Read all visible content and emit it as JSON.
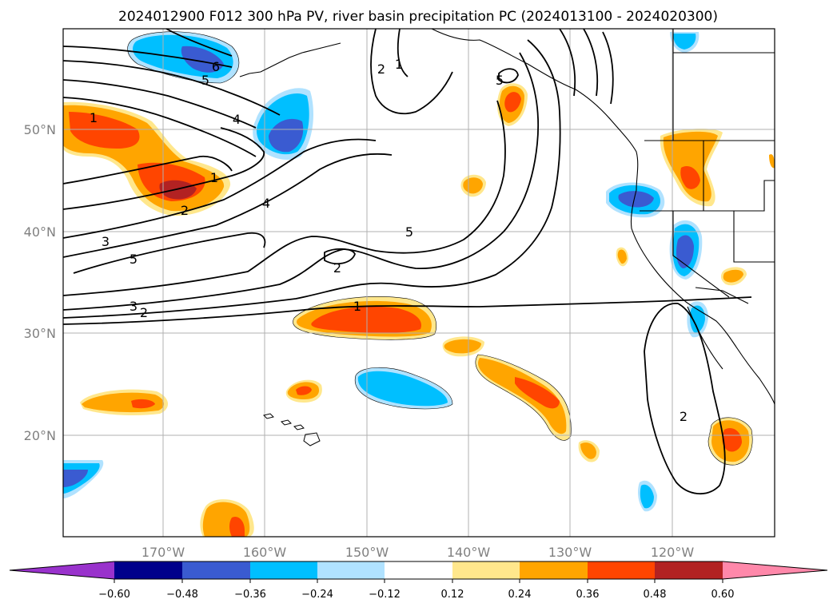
{
  "title": "2024012900 F012 300 hPa PV, river basin precipitation PC (2024013100 - 2024020300)",
  "map": {
    "lat_labels": [
      "50°N",
      "40°N",
      "30°N",
      "20°N"
    ],
    "lon_labels": [
      "170°W",
      "160°W",
      "150°W",
      "140°W",
      "130°W",
      "120°W"
    ],
    "gridlines": true,
    "contour_labels": [
      {
        "text": "6"
      },
      {
        "text": "5"
      },
      {
        "text": "4"
      },
      {
        "text": "1"
      },
      {
        "text": "1"
      },
      {
        "text": "2"
      },
      {
        "text": "4"
      },
      {
        "text": "3"
      },
      {
        "text": "5"
      },
      {
        "text": "2"
      },
      {
        "text": "3"
      },
      {
        "text": "2"
      },
      {
        "text": "1"
      },
      {
        "text": "5"
      },
      {
        "text": "2"
      },
      {
        "text": "1"
      },
      {
        "text": "5"
      },
      {
        "text": "2"
      }
    ]
  },
  "colorbar": {
    "ticks": [
      "−0.60",
      "−0.48",
      "−0.36",
      "−0.24",
      "−0.12",
      "0.12",
      "0.24",
      "0.36",
      "0.48",
      "0.60"
    ],
    "colors": [
      "#9932cc",
      "#00008b",
      "#3a5bd1",
      "#00bfff",
      "#b0e2ff",
      "#ffffff",
      "#ffe78c",
      "#ffa500",
      "#ff4500",
      "#b22222",
      "#ff88aa"
    ]
  }
}
